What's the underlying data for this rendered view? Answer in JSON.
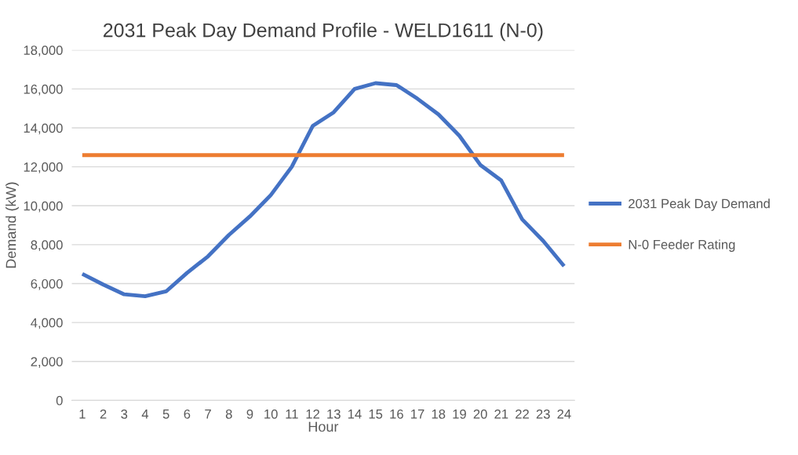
{
  "chart_data": {
    "type": "line",
    "title": "2031 Peak Day Demand Profile - WELD1611 (N-0)",
    "xlabel": "Hour",
    "ylabel": "Demand (kW)",
    "categories": [
      "1",
      "2",
      "3",
      "4",
      "5",
      "6",
      "7",
      "8",
      "9",
      "10",
      "11",
      "12",
      "13",
      "14",
      "15",
      "16",
      "17",
      "18",
      "19",
      "20",
      "21",
      "22",
      "23",
      "24"
    ],
    "series": [
      {
        "name": "2031 Peak Day Demand",
        "color": "#4472c4",
        "values": [
          6500,
          5950,
          5450,
          5350,
          5600,
          6550,
          7400,
          8500,
          9450,
          10550,
          12000,
          14100,
          14800,
          16000,
          16300,
          16200,
          15500,
          14700,
          13600,
          12100,
          11300,
          9300,
          8200,
          6900
        ]
      },
      {
        "name": "N-0 Feeder Rating",
        "color": "#ed7d31",
        "values": [
          12600,
          12600,
          12600,
          12600,
          12600,
          12600,
          12600,
          12600,
          12600,
          12600,
          12600,
          12600,
          12600,
          12600,
          12600,
          12600,
          12600,
          12600,
          12600,
          12600,
          12600,
          12600,
          12600,
          12600
        ]
      }
    ],
    "ylim": [
      0,
      18000
    ],
    "yticks": [
      {
        "value": 0,
        "label": "0"
      },
      {
        "value": 2000,
        "label": "2,000"
      },
      {
        "value": 4000,
        "label": "4,000"
      },
      {
        "value": 6000,
        "label": "6,000"
      },
      {
        "value": 8000,
        "label": "8,000"
      },
      {
        "value": 10000,
        "label": "10,000"
      },
      {
        "value": 12000,
        "label": "12,000"
      },
      {
        "value": 14000,
        "label": "14,000"
      },
      {
        "value": 16000,
        "label": "16,000"
      },
      {
        "value": 18000,
        "label": "18,000"
      }
    ],
    "grid": "y",
    "legend": "right",
    "marker": "none",
    "line_style": "solid"
  }
}
